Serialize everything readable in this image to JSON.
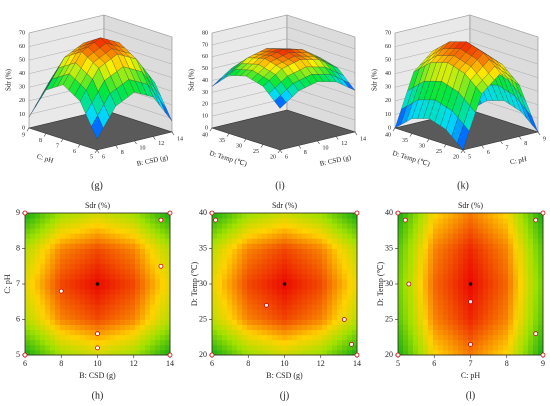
{
  "chart_data": [
    {
      "type": "surface3d",
      "panel_label": "(g)",
      "zlabel": "Sdr (%)",
      "xlabel": "B: CSD (g)",
      "ylabel": "C: pH",
      "xlim": [
        6,
        14
      ],
      "xticks": [
        6,
        8,
        10,
        12,
        14
      ],
      "ylim": [
        5,
        9
      ],
      "yticks": [
        5,
        6,
        7,
        8,
        9
      ],
      "zlim": [
        0,
        70
      ],
      "zticks": [
        0,
        10,
        20,
        30,
        40,
        50,
        60,
        70
      ],
      "x": [
        6,
        8,
        10,
        12,
        14
      ],
      "y": [
        5,
        6,
        7,
        8,
        9
      ],
      "z": [
        [
          8,
          29,
          36,
          29,
          8
        ],
        [
          32,
          53,
          60,
          53,
          32
        ],
        [
          40,
          61,
          68,
          61,
          40
        ],
        [
          32,
          53,
          60,
          53,
          32
        ],
        [
          8,
          29,
          36,
          29,
          8
        ]
      ]
    },
    {
      "type": "surface3d",
      "panel_label": "(i)",
      "zlabel": "Sdr (%)",
      "xlabel": "B: CSD (g)",
      "ylabel": "D: Temp (℃)",
      "xlim": [
        6,
        14
      ],
      "xticks": [
        6,
        8,
        10,
        12,
        14
      ],
      "ylim": [
        20,
        40
      ],
      "yticks": [
        20,
        25,
        30,
        35,
        40
      ],
      "zlim": [
        0,
        80
      ],
      "zticks": [
        0,
        10,
        20,
        30,
        40,
        50,
        60,
        70,
        80
      ],
      "x": [
        6,
        8,
        10,
        12,
        14
      ],
      "y": [
        20,
        25,
        30,
        35,
        40
      ],
      "z": [
        [
          35,
          46,
          50,
          46,
          35
        ],
        [
          49,
          60,
          64,
          60,
          49
        ],
        [
          53,
          64,
          68,
          64,
          53
        ],
        [
          49,
          60,
          64,
          60,
          49
        ],
        [
          35,
          46,
          50,
          46,
          35
        ]
      ]
    },
    {
      "type": "surface3d",
      "panel_label": "(k)",
      "zlabel": "Sdr (%)",
      "xlabel": "C: pH",
      "ylabel": "D: Temp (℃)",
      "xlim": [
        5,
        9
      ],
      "xticks": [
        5,
        6,
        7,
        8,
        9
      ],
      "ylim": [
        20,
        40
      ],
      "yticks": [
        20,
        25,
        30,
        35,
        40
      ],
      "zlim": [
        0,
        70
      ],
      "zticks": [
        0,
        10,
        20,
        30,
        40,
        50,
        60,
        70
      ],
      "x": [
        5,
        6,
        7,
        8,
        9
      ],
      "y": [
        20,
        25,
        30,
        35,
        40
      ],
      "z": [
        [
          0,
          38,
          50,
          38,
          0
        ],
        [
          11,
          49,
          61,
          49,
          11
        ],
        [
          15,
          53,
          65,
          53,
          15
        ],
        [
          11,
          49,
          61,
          49,
          11
        ],
        [
          0,
          38,
          50,
          38,
          0
        ]
      ]
    },
    {
      "type": "contour",
      "title": "Sdr (%)",
      "panel_label": "(h)",
      "xlabel": "B: CSD (g)",
      "ylabel": "C: pH",
      "xlim": [
        6,
        14
      ],
      "xticks": [
        6,
        8,
        10,
        12,
        14
      ],
      "ylim": [
        5,
        9
      ],
      "yticks": [
        5,
        6,
        7,
        8,
        9
      ],
      "x": [
        6,
        8,
        10,
        12,
        14
      ],
      "y": [
        5,
        6,
        7,
        8,
        9
      ],
      "z": [
        [
          8,
          29,
          36,
          29,
          8
        ],
        [
          32,
          53,
          60,
          53,
          32
        ],
        [
          40,
          61,
          68,
          61,
          40
        ],
        [
          32,
          53,
          60,
          53,
          32
        ],
        [
          8,
          29,
          36,
          29,
          8
        ]
      ],
      "points": {
        "x": [
          6,
          14,
          6,
          14,
          13.5,
          13.5,
          8,
          10,
          10
        ],
        "y": [
          5,
          5,
          9,
          9,
          8.8,
          7.5,
          6.8,
          5.6,
          5.2
        ]
      },
      "optimum": {
        "x": 10,
        "y": 7
      }
    },
    {
      "type": "contour",
      "title": "Sdr (%)",
      "panel_label": "(j)",
      "xlabel": "B: CSD (g)",
      "ylabel": "D: Temp (℃)",
      "xlim": [
        6,
        14
      ],
      "xticks": [
        6,
        8,
        10,
        12,
        14
      ],
      "ylim": [
        20,
        40
      ],
      "yticks": [
        20,
        25,
        30,
        35,
        40
      ],
      "x": [
        6,
        8,
        10,
        12,
        14
      ],
      "y": [
        20,
        25,
        30,
        35,
        40
      ],
      "z": [
        [
          35,
          46,
          50,
          46,
          35
        ],
        [
          49,
          60,
          64,
          60,
          49
        ],
        [
          53,
          64,
          68,
          64,
          53
        ],
        [
          49,
          60,
          64,
          60,
          49
        ],
        [
          35,
          46,
          50,
          46,
          35
        ]
      ],
      "points": {
        "x": [
          6,
          14,
          6,
          14,
          6.2,
          9,
          13.3,
          13.7
        ],
        "y": [
          20,
          20,
          40,
          40,
          39,
          27,
          25,
          21.5
        ]
      },
      "optimum": {
        "x": 10,
        "y": 30
      }
    },
    {
      "type": "contour",
      "title": "Sdr (%)",
      "panel_label": "(l)",
      "xlabel": "C: pH",
      "ylabel": "D: Temp (℃)",
      "xlim": [
        5,
        9
      ],
      "xticks": [
        5,
        6,
        7,
        8,
        9
      ],
      "ylim": [
        20,
        40
      ],
      "yticks": [
        20,
        25,
        30,
        35,
        40
      ],
      "x": [
        5,
        6,
        7,
        8,
        9
      ],
      "y": [
        20,
        25,
        30,
        35,
        40
      ],
      "z": [
        [
          0,
          38,
          50,
          38,
          0
        ],
        [
          11,
          49,
          61,
          49,
          11
        ],
        [
          15,
          53,
          65,
          53,
          15
        ],
        [
          11,
          49,
          61,
          49,
          11
        ],
        [
          0,
          38,
          50,
          38,
          0
        ]
      ],
      "points": {
        "x": [
          5,
          9,
          5,
          9,
          5.2,
          5.3,
          7,
          7,
          8.8,
          8.8
        ],
        "y": [
          20,
          20,
          40,
          40,
          39,
          30,
          27.5,
          21.5,
          39,
          23
        ]
      },
      "optimum": {
        "x": 7,
        "y": 30
      }
    }
  ]
}
